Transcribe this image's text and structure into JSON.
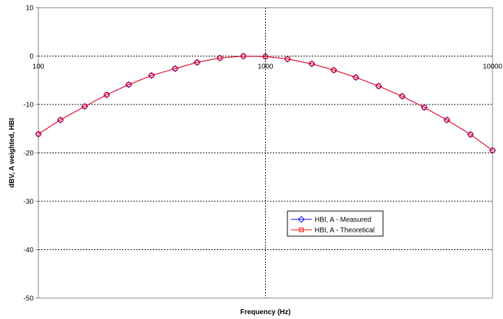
{
  "chart_data": {
    "type": "line",
    "xlabel": "Frequency (Hz)",
    "ylabel": "dBV, A weighted, HBI",
    "x_scale": "log",
    "xlim": [
      100,
      10000
    ],
    "ylim": [
      -50,
      10
    ],
    "x_ticks": [
      {
        "value": 100,
        "label": "100"
      },
      {
        "value": 1000,
        "label": "1000"
      },
      {
        "value": 10000,
        "label": "10000"
      }
    ],
    "y_ticks": [
      {
        "value": 10,
        "label": "10"
      },
      {
        "value": 0,
        "label": "0"
      },
      {
        "value": -10,
        "label": "-10"
      },
      {
        "value": -20,
        "label": "-20"
      },
      {
        "value": -30,
        "label": "-30"
      },
      {
        "value": -40,
        "label": "-40"
      },
      {
        "value": -50,
        "label": "-50"
      }
    ],
    "grid": true,
    "legend_position": "center-right",
    "x": [
      100,
      125,
      160,
      200,
      250,
      315,
      400,
      500,
      630,
      800,
      1000,
      1250,
      1600,
      2000,
      2500,
      3150,
      4000,
      5000,
      6300,
      8000,
      10000
    ],
    "series": [
      {
        "name": "HBI, A - Measured",
        "color": "#0000ff",
        "marker": "diamond",
        "values": [
          -16.1,
          -13.2,
          -10.4,
          -8.0,
          -5.9,
          -4.0,
          -2.6,
          -1.3,
          -0.4,
          0.0,
          -0.1,
          -0.6,
          -1.6,
          -2.9,
          -4.4,
          -6.2,
          -8.3,
          -10.6,
          -13.2,
          -16.2,
          -19.5
        ]
      },
      {
        "name": "HBI, A - Theoretical",
        "color": "#ff0000",
        "marker": "square",
        "values": [
          -16.1,
          -13.2,
          -10.4,
          -8.0,
          -5.9,
          -4.0,
          -2.6,
          -1.3,
          -0.4,
          0.0,
          -0.1,
          -0.6,
          -1.6,
          -2.9,
          -4.4,
          -6.2,
          -8.3,
          -10.6,
          -13.2,
          -16.2,
          -19.5
        ]
      }
    ]
  }
}
